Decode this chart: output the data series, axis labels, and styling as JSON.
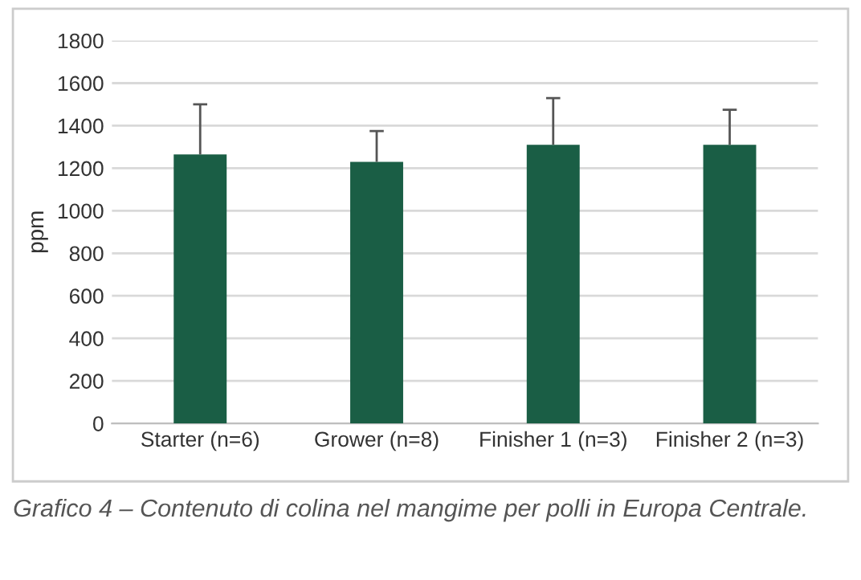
{
  "chart_data": {
    "type": "bar",
    "ylabel": "ppm",
    "categories": [
      "Starter (n=6)",
      "Grower (n=8)",
      "Finisher 1 (n=3)",
      "Finisher 2 (n=3)"
    ],
    "series": [
      {
        "color": "#1a5e45",
        "values": [
          1265,
          1230,
          1310,
          1310
        ],
        "errors": [
          [
            1265,
            1500
          ],
          [
            1230,
            1375
          ],
          [
            1310,
            1530
          ],
          [
            1310,
            1475
          ]
        ]
      }
    ],
    "ylim": [
      0,
      1800
    ],
    "yticks": [
      0,
      200,
      400,
      600,
      800,
      1000,
      1200,
      1400,
      1600,
      1800
    ],
    "grid": "y",
    "annotations": [
      "Grafico 4 – Contenuto di colina nel mangime per polli in Europa Centrale."
    ]
  }
}
